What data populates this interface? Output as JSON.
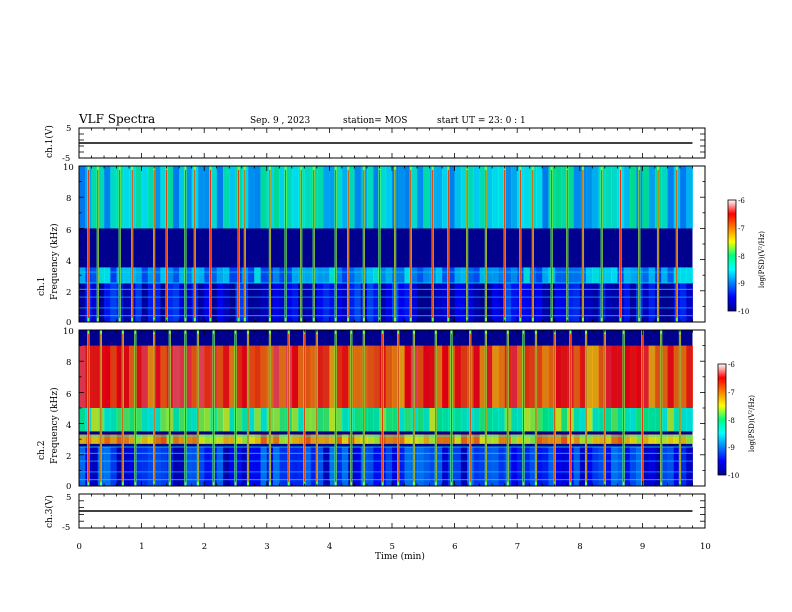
{
  "header": {
    "title": "VLF Spectra",
    "date": "Sep. 9 , 2023",
    "station": "station= MOS",
    "start_ut": "start UT =  23: 0  : 1"
  },
  "chart_data": [
    {
      "type": "line",
      "ylabel": "ch.1(V)",
      "ylim": [
        -5,
        5
      ],
      "y_ticks": [
        "5",
        "-5"
      ],
      "xlim": [
        0,
        10
      ],
      "series": [
        {
          "x": [
            0,
            9.8
          ],
          "values": [
            0,
            0
          ]
        }
      ]
    },
    {
      "type": "heatmap",
      "ylabel": "ch.1\nFrequency (kHz)",
      "ylim": [
        0,
        10
      ],
      "y_ticks": [
        "0",
        "2",
        "4",
        "6",
        "8",
        "10"
      ],
      "xlim": [
        0,
        10
      ],
      "colorbar": {
        "label": "log(PSD)(V²/Hz)",
        "range": [
          -10,
          -6
        ],
        "ticks": [
          "-6",
          "-7",
          "-8",
          "-9",
          "-10"
        ]
      },
      "banded_levels": [
        {
          "freq_range_khz": [
            6,
            10
          ],
          "log_psd": -8.5
        },
        {
          "freq_range_khz": [
            2.5,
            3.5
          ],
          "log_psd": -8.8
        },
        {
          "freq_range_khz": [
            0,
            2.5
          ],
          "log_psd": -9.6
        }
      ],
      "sferic_times_min": [
        0.15,
        0.3,
        0.65,
        0.85,
        1.2,
        1.4,
        1.7,
        1.85,
        2.1,
        2.55,
        2.65,
        3.05,
        3.3,
        3.55,
        3.75,
        4.1,
        4.3,
        4.55,
        4.8,
        5.05,
        5.3,
        5.65,
        5.9,
        6.2,
        6.5,
        6.8,
        7.05,
        7.25,
        7.55,
        7.8,
        8.05,
        8.35,
        8.65,
        8.95,
        9.25,
        9.55
      ]
    },
    {
      "type": "heatmap",
      "ylabel": "ch.2\nFrequency (kHz)",
      "ylim": [
        0,
        10
      ],
      "y_ticks": [
        "0",
        "2",
        "4",
        "6",
        "8",
        "10"
      ],
      "xlim": [
        0,
        10
      ],
      "colorbar": {
        "label": "log(PSD)(V²/Hz)",
        "range": [
          -10,
          -6
        ],
        "ticks": [
          "-6",
          "-7",
          "-8",
          "-9",
          "-10"
        ]
      },
      "banded_levels": [
        {
          "freq_range_khz": [
            5,
            9
          ],
          "log_psd": -6.8
        },
        {
          "freq_range_khz": [
            3.5,
            5
          ],
          "log_psd": -8.0
        },
        {
          "freq_range_khz": [
            2.7,
            3.3
          ],
          "log_psd": -7.3
        },
        {
          "freq_range_khz": [
            0,
            2.5
          ],
          "log_psd": -9.4
        }
      ],
      "sferic_times_min": [
        0.15,
        0.35,
        0.7,
        0.9,
        1.2,
        1.45,
        1.7,
        1.9,
        2.15,
        2.5,
        2.7,
        3.05,
        3.35,
        3.6,
        3.8,
        4.1,
        4.35,
        4.55,
        4.85,
        5.1,
        5.35,
        5.7,
        5.95,
        6.25,
        6.5,
        6.85,
        7.1,
        7.3,
        7.6,
        7.85,
        8.1,
        8.4,
        8.7,
        9.0,
        9.3,
        9.6
      ]
    },
    {
      "type": "line",
      "ylabel": "ch.3(V)",
      "ylim": [
        -5,
        5
      ],
      "y_ticks": [
        "5",
        "-5"
      ],
      "xlim": [
        0,
        10
      ],
      "xlabel": "Time (min)",
      "x_ticks": [
        "0",
        "1",
        "2",
        "3",
        "4",
        "5",
        "6",
        "7",
        "8",
        "9",
        "10"
      ],
      "series": [
        {
          "x": [
            0,
            9.8
          ],
          "values": [
            0,
            0
          ]
        }
      ]
    }
  ]
}
